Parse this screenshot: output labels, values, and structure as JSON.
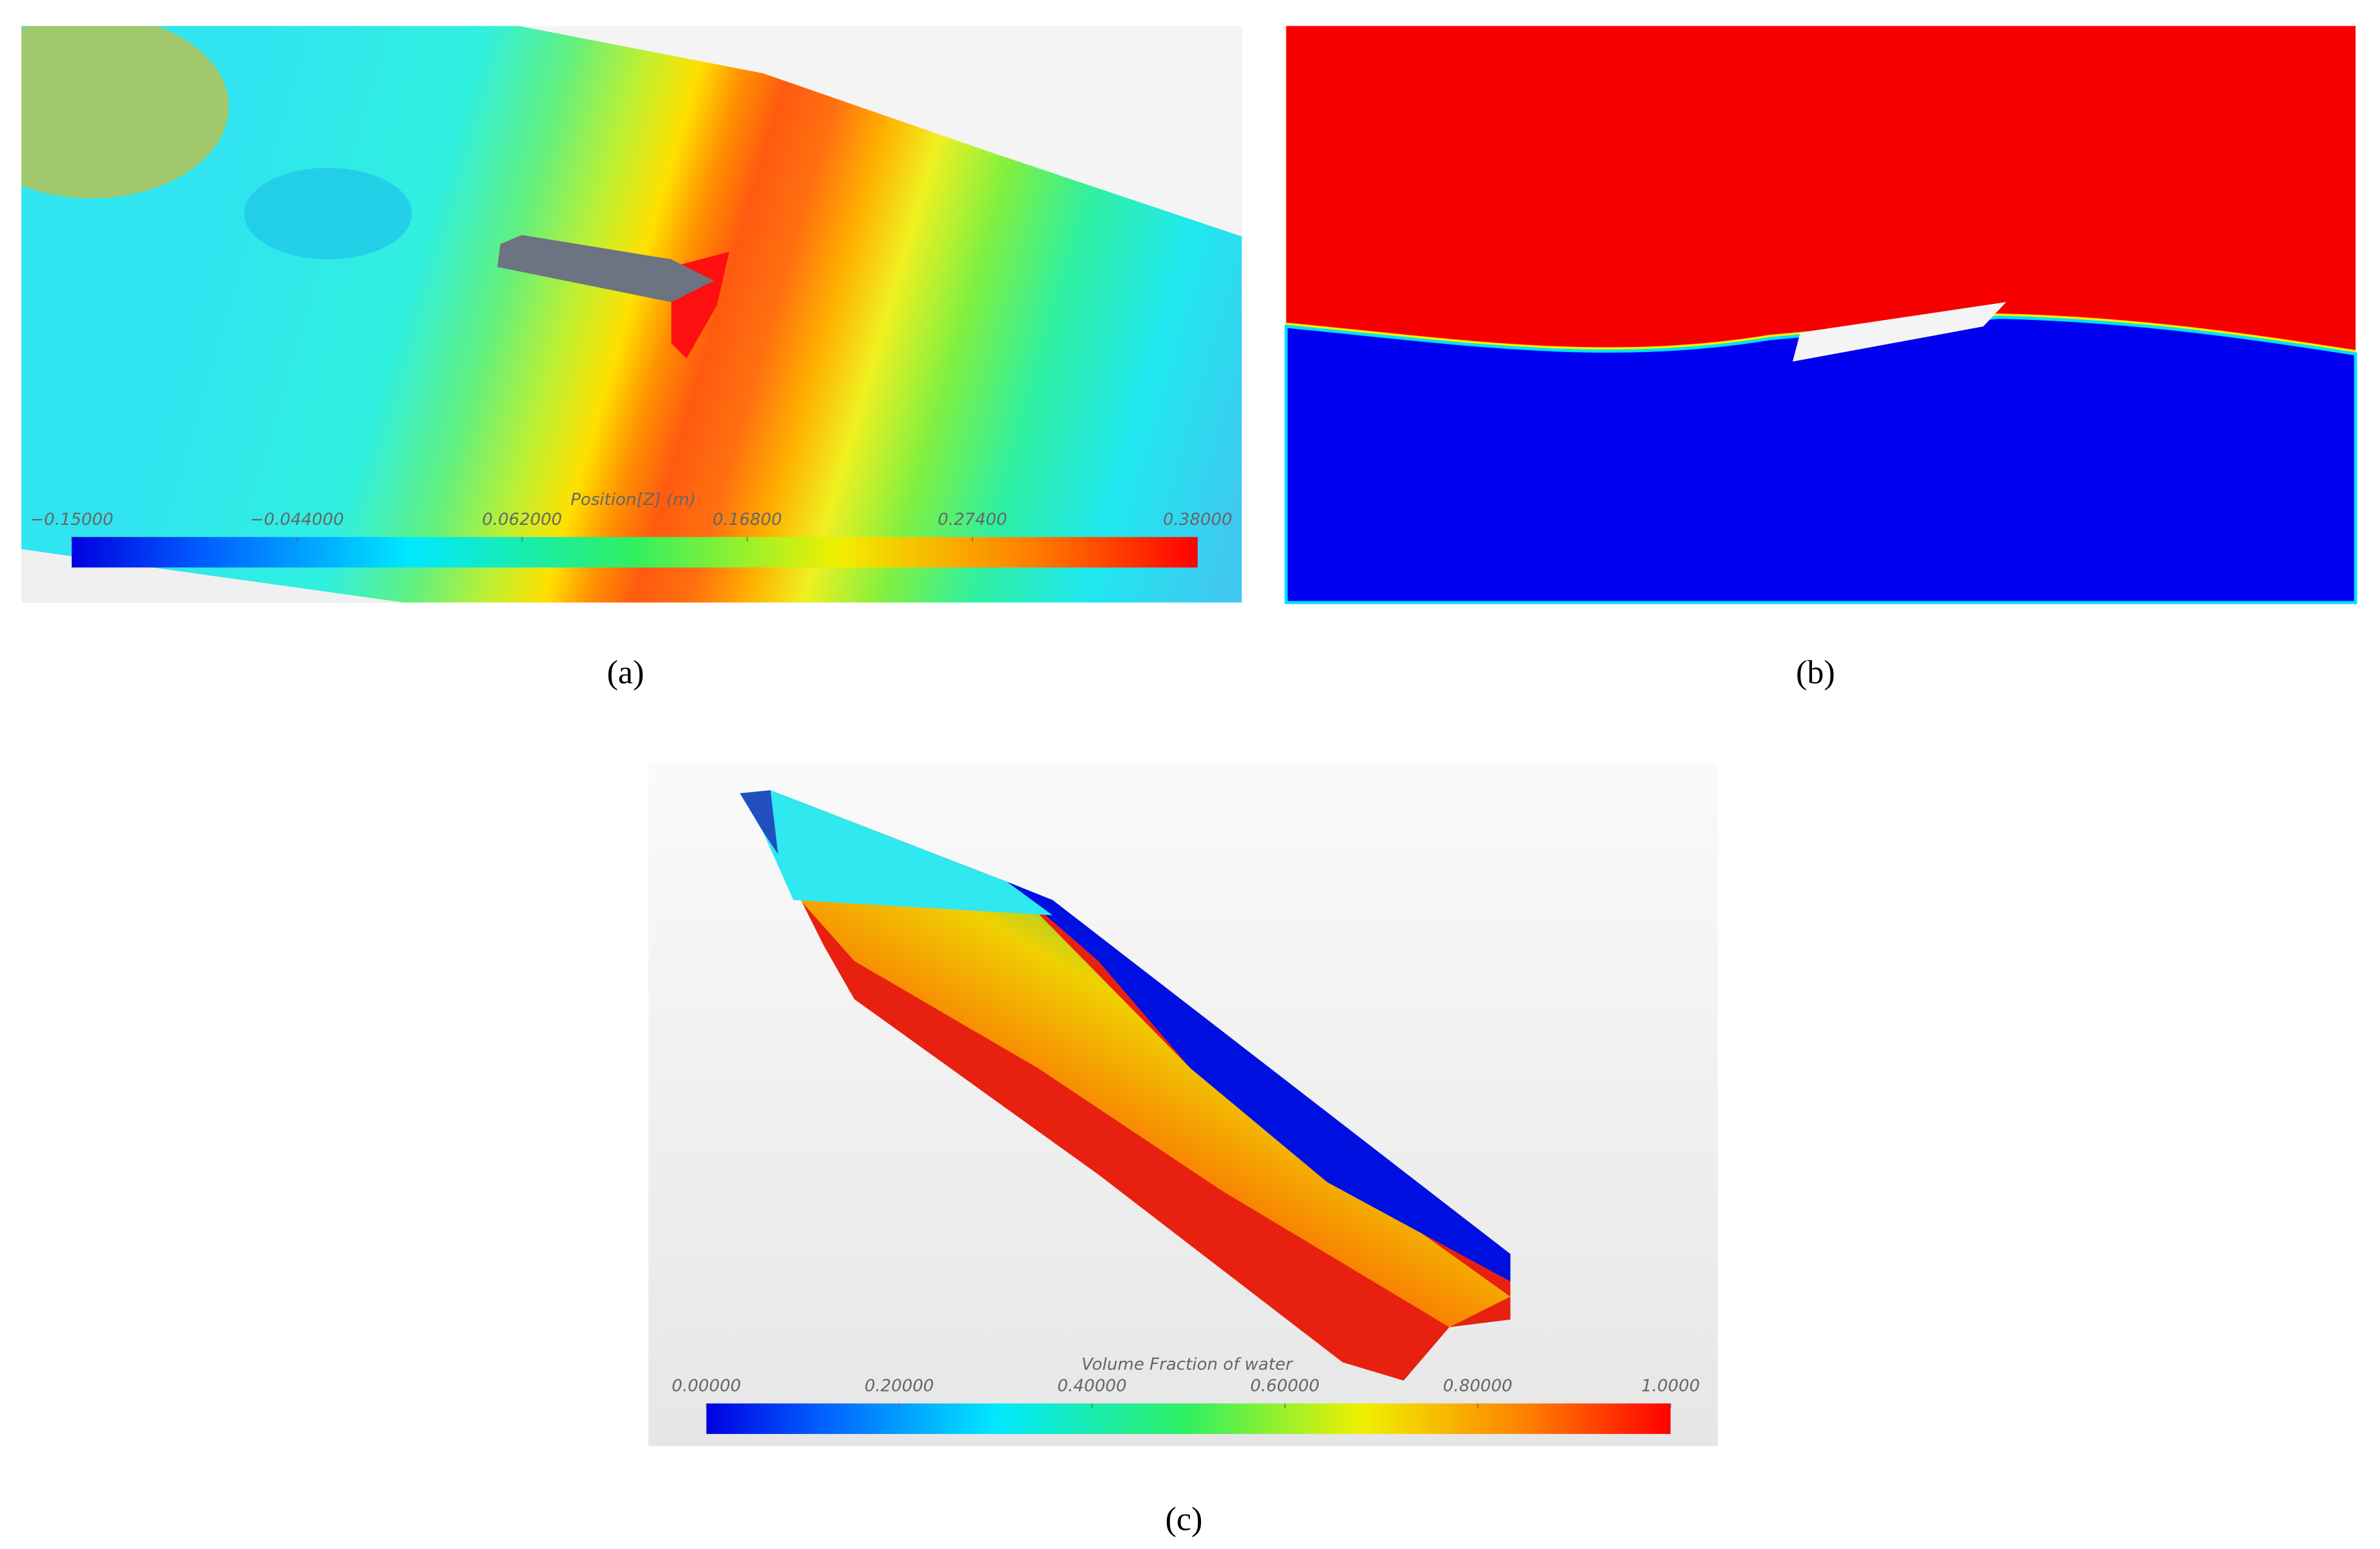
{
  "panels": [
    {
      "label": "(a)",
      "colorbar": {
        "title": "Position[Z] (m)",
        "ticks": [
          {
            "value": -0.15,
            "label": "−0.15000"
          },
          {
            "value": -0.044,
            "label": "−0.044000"
          },
          {
            "value": 0.062,
            "label": "0.062000"
          },
          {
            "value": 0.168,
            "label": "0.16800"
          },
          {
            "value": 0.274,
            "label": "0.27400"
          },
          {
            "value": 0.38,
            "label": "0.38000"
          }
        ]
      }
    },
    {
      "label": "(b)"
    },
    {
      "label": "(c)",
      "colorbar": {
        "title": "Volume Fraction of water",
        "ticks": [
          {
            "value": 0,
            "label": "0.00000"
          },
          {
            "value": 0.2,
            "label": "0.20000"
          },
          {
            "value": 0.4,
            "label": "0.40000"
          },
          {
            "value": 0.6,
            "label": "0.60000"
          },
          {
            "value": 0.8,
            "label": "0.80000"
          },
          {
            "value": 1,
            "label": "1.0000"
          }
        ]
      }
    }
  ]
}
